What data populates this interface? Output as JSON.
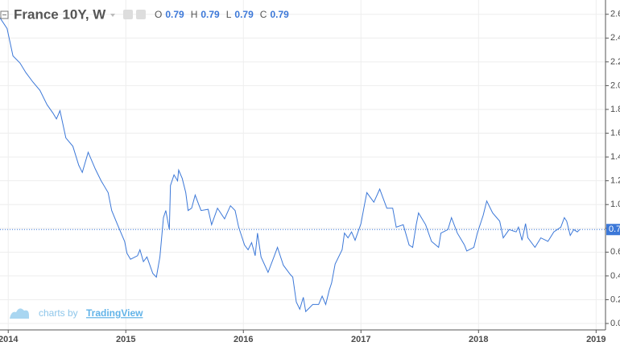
{
  "chart_data": {
    "type": "line",
    "title": "France 10Y, W",
    "ohlc": [
      {
        "label": "O",
        "value": 0.79
      },
      {
        "label": "H",
        "value": 0.79
      },
      {
        "label": "L",
        "value": 0.79
      },
      {
        "label": "C",
        "value": 0.79
      }
    ],
    "last_value": 0.79,
    "watermark": "charts by",
    "watermark_brand": "TradingView",
    "color": "#3c78d8",
    "grid": true,
    "xlim": [
      2013.93,
      2019.08
    ],
    "ylim": [
      -0.054,
      2.72
    ],
    "xticks": [
      2014,
      2015,
      2016,
      2017,
      2018,
      2019
    ],
    "yticks": [
      {
        "value": 0,
        "label": "0.0"
      },
      0.2,
      0.4,
      0.6,
      0.8,
      {
        "value": 1,
        "label": "1.0"
      },
      1.2,
      1.4,
      1.6,
      1.8,
      {
        "value": 2,
        "label": "2.0"
      },
      2.2,
      2.4,
      2.6
    ],
    "x": [
      2013.93,
      2013.99,
      2014.04,
      2014.1,
      2014.15,
      2014.21,
      2014.27,
      2014.33,
      2014.38,
      2014.41,
      2014.44,
      2014.49,
      2014.55,
      2014.6,
      2014.63,
      2014.68,
      2014.74,
      2014.79,
      2014.85,
      2014.88,
      2014.93,
      2014.99,
      2015.01,
      2015.04,
      2015.1,
      2015.12,
      2015.15,
      2015.18,
      2015.23,
      2015.26,
      2015.29,
      2015.32,
      2015.34,
      2015.37,
      2015.38,
      2015.41,
      2015.44,
      2015.45,
      2015.48,
      2015.51,
      2015.53,
      2015.56,
      2015.59,
      2015.62,
      2015.64,
      2015.7,
      2015.73,
      2015.78,
      2015.84,
      2015.89,
      2015.93,
      2015.96,
      2016.01,
      2016.04,
      2016.07,
      2016.1,
      2016.12,
      2016.15,
      2016.21,
      2016.26,
      2016.29,
      2016.34,
      2016.4,
      2016.42,
      2016.45,
      2016.48,
      2016.51,
      2016.53,
      2016.59,
      2016.64,
      2016.67,
      2016.7,
      2016.73,
      2016.75,
      2016.78,
      2016.84,
      2016.86,
      2016.89,
      2016.92,
      2016.95,
      2017.0,
      2017.03,
      2017.05,
      2017.11,
      2017.16,
      2017.22,
      2017.27,
      2017.3,
      2017.36,
      2017.41,
      2017.44,
      2017.47,
      2017.49,
      2017.55,
      2017.6,
      2017.66,
      2017.68,
      2017.74,
      2017.77,
      2017.82,
      2017.88,
      2017.9,
      2017.96,
      2017.99,
      2018.04,
      2018.07,
      2018.12,
      2018.18,
      2018.21,
      2018.26,
      2018.32,
      2018.34,
      2018.37,
      2018.4,
      2018.42,
      2018.48,
      2018.53,
      2018.59,
      2018.64,
      2018.7,
      2018.73,
      2018.75,
      2018.78,
      2018.81,
      2018.84,
      2018.86
    ],
    "values": [
      2.57,
      2.48,
      2.25,
      2.19,
      2.11,
      2.03,
      1.96,
      1.84,
      1.77,
      1.72,
      1.79,
      1.56,
      1.49,
      1.33,
      1.27,
      1.44,
      1.3,
      1.2,
      1.1,
      0.95,
      0.83,
      0.69,
      0.59,
      0.54,
      0.57,
      0.62,
      0.52,
      0.56,
      0.42,
      0.39,
      0.56,
      0.89,
      0.95,
      0.79,
      1.16,
      1.25,
      1.2,
      1.29,
      1.22,
      1.1,
      0.95,
      0.97,
      1.08,
      1.0,
      0.95,
      0.96,
      0.83,
      0.97,
      0.88,
      0.99,
      0.95,
      0.81,
      0.66,
      0.62,
      0.68,
      0.57,
      0.76,
      0.56,
      0.43,
      0.56,
      0.64,
      0.49,
      0.41,
      0.39,
      0.18,
      0.12,
      0.22,
      0.1,
      0.16,
      0.16,
      0.23,
      0.16,
      0.28,
      0.34,
      0.5,
      0.62,
      0.76,
      0.72,
      0.77,
      0.7,
      0.84,
      1.0,
      1.1,
      1.02,
      1.13,
      0.97,
      0.97,
      0.81,
      0.83,
      0.66,
      0.64,
      0.83,
      0.93,
      0.83,
      0.69,
      0.64,
      0.76,
      0.79,
      0.89,
      0.76,
      0.66,
      0.61,
      0.64,
      0.76,
      0.91,
      1.03,
      0.93,
      0.86,
      0.72,
      0.79,
      0.77,
      0.81,
      0.7,
      0.84,
      0.72,
      0.64,
      0.72,
      0.69,
      0.77,
      0.81,
      0.89,
      0.86,
      0.74,
      0.79,
      0.77,
      0.79
    ]
  }
}
